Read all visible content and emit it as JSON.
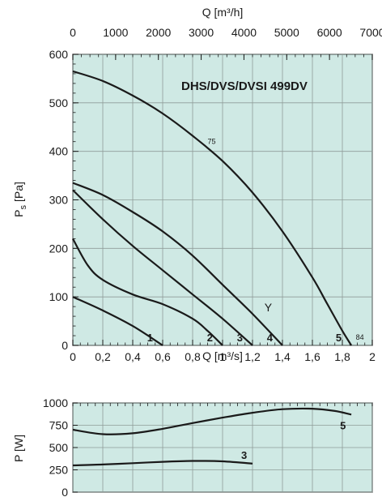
{
  "chart_data": [
    {
      "type": "line",
      "title": "DHS/DVS/DVSI 499DV",
      "xlabel": "Q [m³/s]",
      "x2label": "Q [m³/h]",
      "ylabel": "P",
      "ylabel_sub": "s",
      "ylabel_unit": "[Pa]",
      "xlim": [
        0,
        2
      ],
      "ylim": [
        0,
        600
      ],
      "x2lim": [
        0,
        7000
      ],
      "x_ticks": [
        "0",
        "0,2",
        "0,4",
        "0,6",
        "0,8",
        "1",
        "1,2",
        "1,4",
        "1,6",
        "1,8",
        "2"
      ],
      "x2_ticks": [
        "0",
        "1000",
        "2000",
        "3000",
        "4000",
        "5000",
        "6000",
        "7000"
      ],
      "y_ticks": [
        "0",
        "100",
        "200",
        "300",
        "400",
        "500",
        "600"
      ],
      "grid": true,
      "background": "#cfe9e4",
      "series": [
        {
          "name": "1",
          "x": [
            0,
            0.2,
            0.4,
            0.6
          ],
          "y": [
            100,
            72,
            40,
            0
          ]
        },
        {
          "name": "2",
          "x": [
            0,
            0.1,
            0.2,
            0.4,
            0.6,
            0.8,
            0.9,
            1.0
          ],
          "y": [
            220,
            165,
            135,
            105,
            85,
            55,
            30,
            0
          ]
        },
        {
          "name": "3",
          "x": [
            0,
            0.2,
            0.4,
            0.6,
            0.8,
            1.0,
            1.2
          ],
          "y": [
            320,
            260,
            205,
            155,
            105,
            55,
            0
          ]
        },
        {
          "name": "4",
          "x": [
            0,
            0.2,
            0.4,
            0.6,
            0.8,
            1.0,
            1.2,
            1.4
          ],
          "y": [
            335,
            310,
            275,
            235,
            185,
            125,
            65,
            0
          ]
        },
        {
          "name": "5",
          "x": [
            0,
            0.2,
            0.4,
            0.6,
            0.8,
            1.0,
            1.2,
            1.4,
            1.6,
            1.7,
            1.8,
            1.86
          ],
          "y": [
            565,
            545,
            515,
            478,
            432,
            380,
            315,
            235,
            140,
            85,
            30,
            0
          ]
        }
      ],
      "annotations": [
        {
          "text": "Y",
          "x": 1.28,
          "y": 70
        },
        {
          "text": "75",
          "x": 0.9,
          "y": 415
        },
        {
          "text": "84",
          "x": 1.89,
          "y": 12
        }
      ]
    },
    {
      "type": "line",
      "ylabel": "P [W]",
      "xlim": [
        0,
        2
      ],
      "ylim": [
        0,
        1000
      ],
      "y_ticks": [
        "0",
        "250",
        "500",
        "750",
        "1000"
      ],
      "grid": true,
      "background": "#cfe9e4",
      "series": [
        {
          "name": "5",
          "x": [
            0,
            0.2,
            0.4,
            0.6,
            0.8,
            1.0,
            1.2,
            1.4,
            1.6,
            1.75,
            1.86
          ],
          "y": [
            700,
            650,
            660,
            710,
            775,
            835,
            890,
            930,
            935,
            910,
            870
          ]
        },
        {
          "name": "3",
          "x": [
            0,
            0.2,
            0.4,
            0.6,
            0.8,
            1.0,
            1.2
          ],
          "y": [
            300,
            310,
            325,
            340,
            350,
            345,
            320
          ]
        }
      ]
    }
  ]
}
